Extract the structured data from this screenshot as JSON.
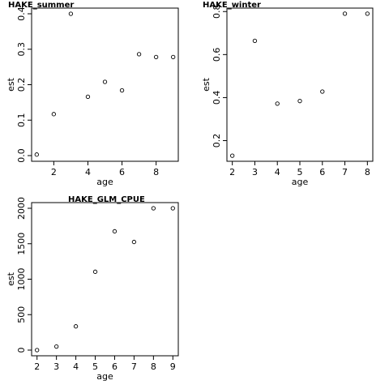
{
  "chart_data": [
    {
      "type": "scatter",
      "title": "HAKE_summer",
      "xlabel": "age",
      "ylabel": "est",
      "xlim": [
        0.7,
        9.3
      ],
      "ylim": [
        -0.016,
        0.416
      ],
      "xticks": [
        2,
        4,
        6,
        8
      ],
      "xtick_labels": [
        "2",
        "4",
        "6",
        "8"
      ],
      "yticks": [
        0.0,
        0.1,
        0.2,
        0.3,
        0.4
      ],
      "ytick_labels": [
        "0.0",
        "0.1",
        "0.2",
        "0.3",
        "0.4"
      ],
      "x": [
        1,
        2,
        3,
        4,
        5,
        6,
        7,
        8,
        9
      ],
      "y": [
        0.003,
        0.117,
        0.4,
        0.166,
        0.208,
        0.184,
        0.286,
        0.278,
        0.278
      ],
      "grid": false
    },
    {
      "type": "scatter",
      "title": "HAKE_winter",
      "xlabel": "age",
      "ylabel": "est",
      "xlim": [
        1.76,
        8.24
      ],
      "ylim": [
        0.104,
        0.816
      ],
      "xticks": [
        2,
        3,
        4,
        5,
        6,
        7,
        8
      ],
      "xtick_labels": [
        "2",
        "3",
        "4",
        "5",
        "6",
        "7",
        "8"
      ],
      "yticks": [
        0.2,
        0.4,
        0.6,
        0.8
      ],
      "ytick_labels": [
        "0.2",
        "0.4",
        "0.6",
        "0.8"
      ],
      "x": [
        2,
        3,
        4,
        5,
        6,
        7,
        8
      ],
      "y": [
        0.13,
        0.664,
        0.372,
        0.384,
        0.428,
        0.79,
        0.79
      ],
      "grid": false
    },
    {
      "type": "scatter",
      "title": "HAKE_GLM_CPUE",
      "xlabel": "age",
      "ylabel": "est",
      "xlim": [
        1.72,
        9.28
      ],
      "ylim": [
        -80,
        2080
      ],
      "xticks": [
        2,
        3,
        4,
        5,
        6,
        7,
        8,
        9
      ],
      "xtick_labels": [
        "2",
        "3",
        "4",
        "5",
        "6",
        "7",
        "8",
        "9"
      ],
      "yticks": [
        0,
        500,
        1000,
        1500,
        2000
      ],
      "ytick_labels": [
        "0",
        "500",
        "1000",
        "1500",
        "2000"
      ],
      "x": [
        2,
        3,
        4,
        5,
        6,
        7,
        8,
        9
      ],
      "y": [
        0,
        50,
        335,
        1105,
        1675,
        1525,
        2000,
        2000
      ],
      "grid": false
    }
  ]
}
